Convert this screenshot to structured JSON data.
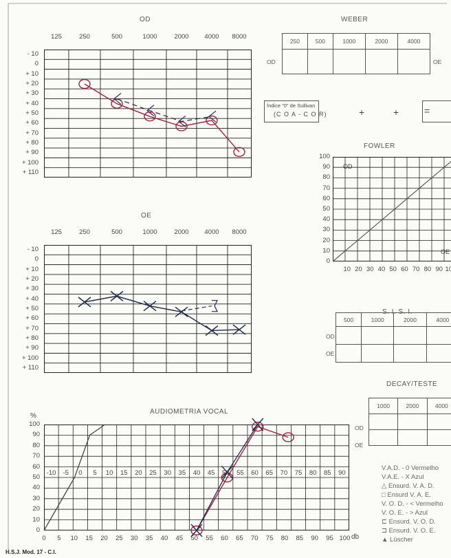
{
  "od_panel": {
    "title": "OD",
    "freq_labels": [
      "125",
      "250",
      "500",
      "1000",
      "2000",
      "4000",
      "8000"
    ],
    "db_labels": [
      "- 10",
      "0",
      "+ 10",
      "+ 20",
      "+ 30",
      "+ 40",
      "+ 50",
      "+ 60",
      "+ 70",
      "+ 80",
      "+ 90",
      "+ 100",
      "+ 110"
    ],
    "air_points_db": [
      [
        250,
        25
      ],
      [
        500,
        45
      ],
      [
        1000,
        58
      ],
      [
        2000,
        68
      ],
      [
        4000,
        62
      ],
      [
        8000,
        94
      ]
    ],
    "bone_points_db": [
      [
        500,
        40
      ],
      [
        1000,
        52
      ],
      [
        2000,
        63
      ],
      [
        4000,
        58
      ]
    ]
  },
  "oe_panel": {
    "title": "OE",
    "freq_labels": [
      "125",
      "250",
      "500",
      "1000",
      "2000",
      "4000",
      "8000"
    ],
    "db_labels": [
      "- 10",
      "0",
      "+ 10",
      "+ 20",
      "+ 30",
      "+ 40",
      "+ 50",
      "+ 60",
      "+ 70",
      "+ 80",
      "+ 90",
      "+ 100",
      "+ 110"
    ],
    "air_points_db": [
      [
        250,
        48
      ],
      [
        500,
        42
      ],
      [
        1000,
        52
      ],
      [
        2000,
        58
      ],
      [
        4000,
        77
      ],
      [
        8000,
        76
      ]
    ],
    "bone_points_db": [
      [
        2000,
        57
      ],
      [
        4000,
        52
      ]
    ]
  },
  "weber": {
    "title": "WEBER",
    "freqs": [
      "250",
      "500",
      "1000",
      "2000",
      "4000"
    ],
    "left_label": "OD",
    "right_label": "OE"
  },
  "sullivan": {
    "line1": "Índice \"0\" de Sullivan",
    "line2": "(C O A - C O R)",
    "marks": [
      "+",
      "+",
      "="
    ]
  },
  "fowler": {
    "title": "FOWLER",
    "y_labels": [
      "100",
      "90",
      "80",
      "70",
      "60",
      "50",
      "40",
      "30",
      "20",
      "10",
      "0"
    ],
    "x_labels": [
      "10",
      "20",
      "30",
      "40",
      "50",
      "60",
      "70",
      "80",
      "90",
      "100"
    ],
    "od_label": "OD",
    "oe_label": "OE"
  },
  "sisi": {
    "title": "S. I. S. I.",
    "freqs": [
      "500",
      "1000",
      "2000",
      "4000"
    ],
    "rows": [
      "OD",
      "OE"
    ]
  },
  "decay": {
    "title": "DECAY/TESTE",
    "freqs": [
      "1000",
      "2000",
      "4000"
    ],
    "rows": [
      "OD",
      "OE"
    ]
  },
  "vocal": {
    "title": "AUDIOMETRIA VOCAL",
    "y_unit": "%",
    "y_labels": [
      "100",
      "90",
      "80",
      "70",
      "60",
      "50",
      "40",
      "30",
      "20",
      "10",
      "0"
    ],
    "x_labels": [
      "0",
      "5",
      "10",
      "15",
      "20",
      "25",
      "30",
      "35",
      "40",
      "45",
      "50",
      "55",
      "60",
      "65",
      "70",
      "75",
      "80",
      "85",
      "90",
      "95",
      "100"
    ],
    "x_unit": "db",
    "inner_labels": [
      "-10",
      "-5",
      "0",
      "5",
      "10",
      "15",
      "20",
      "25",
      "30",
      "35",
      "40",
      "45",
      "50",
      "55",
      "60",
      "65",
      "70",
      "75",
      "80",
      "85",
      "90"
    ],
    "reference_curve": [
      [
        0,
        0
      ],
      [
        5,
        25
      ],
      [
        10,
        50
      ],
      [
        15,
        90
      ],
      [
        20,
        100
      ]
    ],
    "od_curve": [
      [
        50,
        0
      ],
      [
        60,
        50
      ],
      [
        70,
        98
      ],
      [
        80,
        88
      ]
    ],
    "oe_curve": [
      [
        50,
        0
      ],
      [
        60,
        55
      ],
      [
        70,
        100
      ]
    ]
  },
  "legend": {
    "lines": [
      "V.A.D. - 0 Vermelho",
      "V.A.E. - X Azul",
      "△ Ensurd. V. A. D.",
      "□ Ensurd V. A. E.",
      "V. O. D. - < Vermelho",
      "V. O. E. - > Azul",
      "⊏ Ensurd. V. O. D.",
      "⊐ Ensurd. V. O. E.",
      "▲ Lüscher"
    ]
  },
  "footer": "H.S.J. Mod. 17 - C.I.",
  "colors": {
    "red_pen": "#a0203c",
    "blue_pen": "#1e2a44",
    "grid": "#222222",
    "print": "#555555"
  }
}
